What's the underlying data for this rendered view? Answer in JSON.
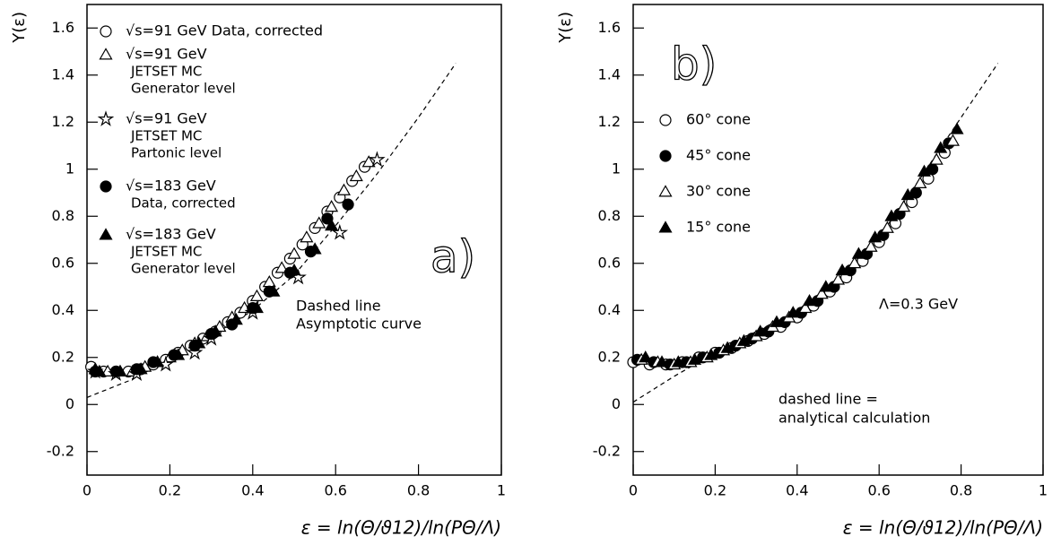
{
  "chart_data": [
    {
      "type": "scatter",
      "xlabel": "ε = ln(Θ/ϑ12)/ln(PΘ/Λ)",
      "ylabel": "Y(ε)",
      "panel_label": "a)",
      "annotations": [
        "Dashed line",
        "Asymptotic curve"
      ],
      "xlim": [
        0,
        1
      ],
      "ylim": [
        -0.3,
        1.7
      ],
      "xticks": [
        0,
        0.2,
        0.4,
        0.6,
        0.8,
        1
      ],
      "yticks": [
        -0.2,
        0,
        0.2,
        0.4,
        0.6,
        0.8,
        1,
        1.2,
        1.4,
        1.6
      ],
      "series": [
        {
          "marker": "dashed-line",
          "color": "#000000",
          "x": [
            0,
            0.1,
            0.2,
            0.3,
            0.4,
            0.5,
            0.6,
            0.7,
            0.8,
            0.89
          ],
          "values": [
            0.03,
            0.1,
            0.19,
            0.29,
            0.4,
            0.55,
            0.76,
            0.98,
            1.22,
            1.45
          ]
        },
        {
          "name": [
            "√s=91 GeV  Data, corrected"
          ],
          "marker": "circle-open",
          "color": "#000000",
          "x": [
            0.01,
            0.04,
            0.07,
            0.1,
            0.13,
            0.16,
            0.19,
            0.22,
            0.25,
            0.28,
            0.31,
            0.34,
            0.37,
            0.4,
            0.43,
            0.46,
            0.49,
            0.52,
            0.55,
            0.58,
            0.61,
            0.64,
            0.67
          ],
          "values": [
            0.16,
            0.14,
            0.14,
            0.14,
            0.15,
            0.17,
            0.19,
            0.22,
            0.25,
            0.28,
            0.31,
            0.35,
            0.39,
            0.44,
            0.5,
            0.56,
            0.62,
            0.68,
            0.75,
            0.82,
            0.88,
            0.95,
            1.01
          ]
        },
        {
          "name": [
            "√s=91 GeV",
            "JETSET MC",
            "Generator level"
          ],
          "marker": "triangle-open",
          "color": "#000000",
          "x": [
            0.02,
            0.05,
            0.08,
            0.11,
            0.14,
            0.17,
            0.2,
            0.23,
            0.26,
            0.29,
            0.32,
            0.35,
            0.38,
            0.41,
            0.44,
            0.47,
            0.5,
            0.53,
            0.56,
            0.59,
            0.62,
            0.65,
            0.68
          ],
          "values": [
            0.15,
            0.14,
            0.14,
            0.14,
            0.16,
            0.18,
            0.2,
            0.23,
            0.26,
            0.29,
            0.33,
            0.37,
            0.41,
            0.46,
            0.52,
            0.58,
            0.64,
            0.71,
            0.77,
            0.84,
            0.91,
            0.97,
            1.03
          ]
        },
        {
          "name": [
            "√s=91 GeV",
            "JETSET MC",
            "Partonic level"
          ],
          "marker": "star-open",
          "color": "#000000",
          "x": [
            0.02,
            0.07,
            0.12,
            0.19,
            0.26,
            0.3,
            0.4,
            0.51,
            0.61,
            0.7
          ],
          "values": [
            0.14,
            0.13,
            0.13,
            0.17,
            0.22,
            0.28,
            0.39,
            0.54,
            0.73,
            1.04
          ]
        },
        {
          "name": [
            "√s=183 GeV",
            "Data, corrected"
          ],
          "marker": "circle",
          "color": "#000000",
          "x": [
            0.02,
            0.07,
            0.12,
            0.16,
            0.21,
            0.26,
            0.3,
            0.35,
            0.4,
            0.44,
            0.49,
            0.54,
            0.58,
            0.63
          ],
          "values": [
            0.14,
            0.14,
            0.15,
            0.18,
            0.21,
            0.25,
            0.3,
            0.34,
            0.41,
            0.48,
            0.56,
            0.65,
            0.79,
            0.85
          ]
        },
        {
          "name": [
            "√s=183 GeV",
            "JETSET MC",
            "Generator level"
          ],
          "marker": "triangle",
          "color": "#000000",
          "x": [
            0.03,
            0.08,
            0.13,
            0.17,
            0.22,
            0.27,
            0.31,
            0.36,
            0.41,
            0.45,
            0.5,
            0.55,
            0.59
          ],
          "values": [
            0.14,
            0.14,
            0.15,
            0.18,
            0.21,
            0.26,
            0.31,
            0.36,
            0.41,
            0.48,
            0.57,
            0.66,
            0.76
          ]
        }
      ]
    },
    {
      "type": "scatter",
      "xlabel": "ε = ln(Θ/ϑ12)/ln(PΘ/Λ)",
      "ylabel": "Y(ε)",
      "panel_label": "b)",
      "annotations": [
        "Λ=0.3 GeV",
        "dashed line =",
        "analytical calculation"
      ],
      "xlim": [
        0,
        1
      ],
      "ylim": [
        -0.3,
        1.7
      ],
      "xticks": [
        0,
        0.2,
        0.4,
        0.6,
        0.8,
        1
      ],
      "yticks": [
        -0.2,
        0,
        0.2,
        0.4,
        0.6,
        0.8,
        1,
        1.2,
        1.4,
        1.6
      ],
      "series": [
        {
          "marker": "dashed-line",
          "color": "#000000",
          "x": [
            0,
            0.1,
            0.2,
            0.3,
            0.4,
            0.5,
            0.6,
            0.7,
            0.8,
            0.89
          ],
          "values": [
            0.01,
            0.12,
            0.22,
            0.31,
            0.4,
            0.53,
            0.71,
            0.96,
            1.22,
            1.45
          ]
        },
        {
          "name": [
            "60° cone"
          ],
          "marker": "circle-open",
          "color": "#000000",
          "x": [
            0,
            0.04,
            0.08,
            0.12,
            0.16,
            0.2,
            0.24,
            0.28,
            0.32,
            0.36,
            0.4,
            0.44,
            0.48,
            0.52,
            0.56,
            0.6,
            0.64,
            0.68,
            0.72,
            0.76
          ],
          "values": [
            0.18,
            0.17,
            0.17,
            0.18,
            0.2,
            0.22,
            0.24,
            0.27,
            0.3,
            0.33,
            0.37,
            0.42,
            0.48,
            0.54,
            0.61,
            0.69,
            0.77,
            0.86,
            0.96,
            1.07
          ]
        },
        {
          "name": [
            "45° cone"
          ],
          "marker": "circle",
          "color": "#000000",
          "x": [
            0.01,
            0.05,
            0.09,
            0.13,
            0.17,
            0.21,
            0.25,
            0.29,
            0.33,
            0.37,
            0.41,
            0.45,
            0.49,
            0.53,
            0.57,
            0.61,
            0.65,
            0.69,
            0.73,
            0.77
          ],
          "values": [
            0.19,
            0.18,
            0.17,
            0.18,
            0.2,
            0.22,
            0.25,
            0.28,
            0.31,
            0.35,
            0.39,
            0.44,
            0.5,
            0.57,
            0.64,
            0.72,
            0.81,
            0.9,
            1,
            1.11
          ]
        },
        {
          "name": [
            "30° cone"
          ],
          "marker": "triangle-open",
          "color": "#000000",
          "x": [
            0.02,
            0.06,
            0.1,
            0.14,
            0.18,
            0.22,
            0.26,
            0.3,
            0.34,
            0.38,
            0.42,
            0.46,
            0.5,
            0.54,
            0.58,
            0.62,
            0.66,
            0.7,
            0.74,
            0.78
          ],
          "values": [
            0.19,
            0.18,
            0.17,
            0.18,
            0.2,
            0.23,
            0.26,
            0.29,
            0.33,
            0.37,
            0.41,
            0.47,
            0.53,
            0.6,
            0.67,
            0.75,
            0.84,
            0.94,
            1.04,
            1.12
          ]
        },
        {
          "name": [
            "15° cone"
          ],
          "marker": "triangle",
          "color": "#000000",
          "x": [
            0.03,
            0.07,
            0.11,
            0.15,
            0.19,
            0.23,
            0.27,
            0.31,
            0.35,
            0.39,
            0.43,
            0.47,
            0.51,
            0.55,
            0.59,
            0.63,
            0.67,
            0.71,
            0.75,
            0.79
          ],
          "values": [
            0.2,
            0.18,
            0.18,
            0.19,
            0.21,
            0.24,
            0.27,
            0.31,
            0.35,
            0.39,
            0.44,
            0.5,
            0.57,
            0.64,
            0.71,
            0.8,
            0.89,
            0.99,
            1.09,
            1.17
          ]
        }
      ]
    }
  ]
}
